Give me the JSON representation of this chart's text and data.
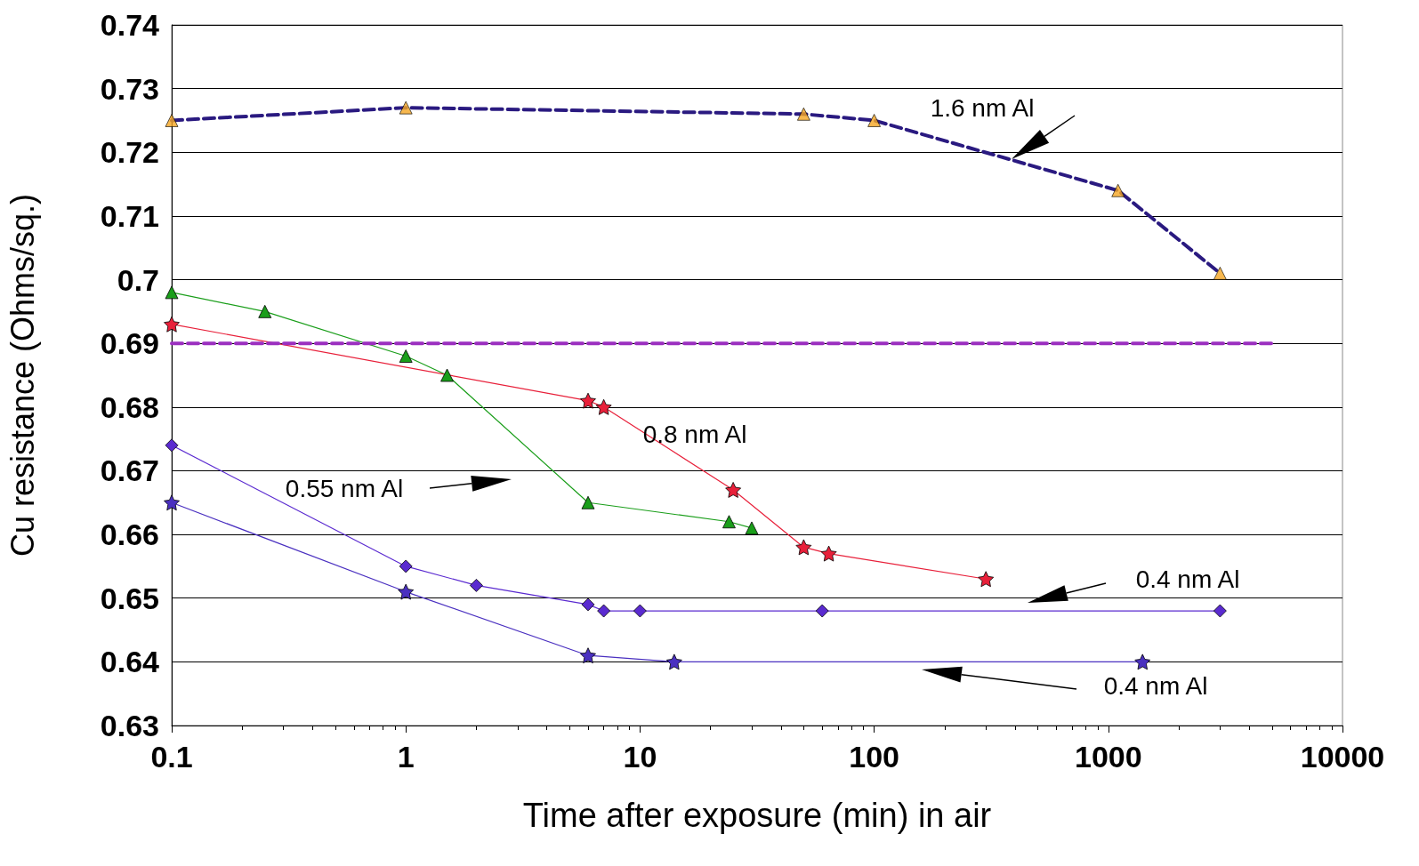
{
  "chart_data": {
    "type": "line",
    "xlabel": "Time after exposure (min) in air",
    "ylabel": "Cu resistance (Ohms/sq.)",
    "log": "x",
    "grid": "y",
    "xlim": [
      0.1,
      10000
    ],
    "xticks": [
      0.1,
      1,
      10,
      100,
      1000,
      10000
    ],
    "ylim": [
      0.63,
      0.74
    ],
    "yticks": [
      0.63,
      0.64,
      0.65,
      0.66,
      0.67,
      0.68,
      0.69,
      0.7,
      0.71,
      0.72,
      0.73,
      0.74
    ],
    "series": [
      {
        "color": "#2a1a80",
        "marker": "none",
        "line_style": "dashed",
        "x": [
          0.1,
          1,
          50,
          100,
          1100,
          3000
        ],
        "values": [
          0.725,
          0.727,
          0.726,
          0.725,
          0.714,
          0.701
        ]
      },
      {
        "type": "scatter",
        "color": "#f5a623",
        "marker": "triangle",
        "x": [
          0.1,
          1,
          50,
          100,
          1100,
          3000
        ],
        "values": [
          0.725,
          0.727,
          0.726,
          0.725,
          0.714,
          0.701
        ]
      },
      {
        "color": "#1a9e1a",
        "marker": "triangle",
        "x": [
          0.1,
          0.25,
          1,
          1.5,
          6,
          24,
          30
        ],
        "values": [
          0.698,
          0.695,
          0.688,
          0.685,
          0.665,
          0.662,
          0.661
        ]
      },
      {
        "color": "#e8203a",
        "marker": "star",
        "x": [
          0.1,
          6,
          7,
          25,
          50,
          64,
          300
        ],
        "values": [
          0.693,
          0.681,
          0.68,
          0.667,
          0.658,
          0.657,
          0.653
        ]
      },
      {
        "color": "#5a2ad0",
        "marker": "diamond",
        "x": [
          0.1,
          1,
          2,
          6,
          7,
          10,
          60,
          3000
        ],
        "values": [
          0.674,
          0.655,
          0.652,
          0.649,
          0.648,
          0.648,
          0.648,
          0.648
        ]
      },
      {
        "color": "#4a30c0",
        "marker": "star",
        "x": [
          0.1,
          1,
          6,
          14,
          1400
        ],
        "values": [
          0.665,
          0.651,
          0.641,
          0.64,
          0.64
        ]
      },
      {
        "color": "#9b30c0",
        "marker": "none",
        "line_style": "dashed",
        "x": [
          0.1,
          5000
        ],
        "values": [
          0.69,
          0.69
        ]
      }
    ],
    "annotations": [
      "1.6 nm Al",
      "0.8 nm Al",
      "0.55 nm Al",
      "0.4 nm Al",
      "0.4 nm Al"
    ]
  }
}
